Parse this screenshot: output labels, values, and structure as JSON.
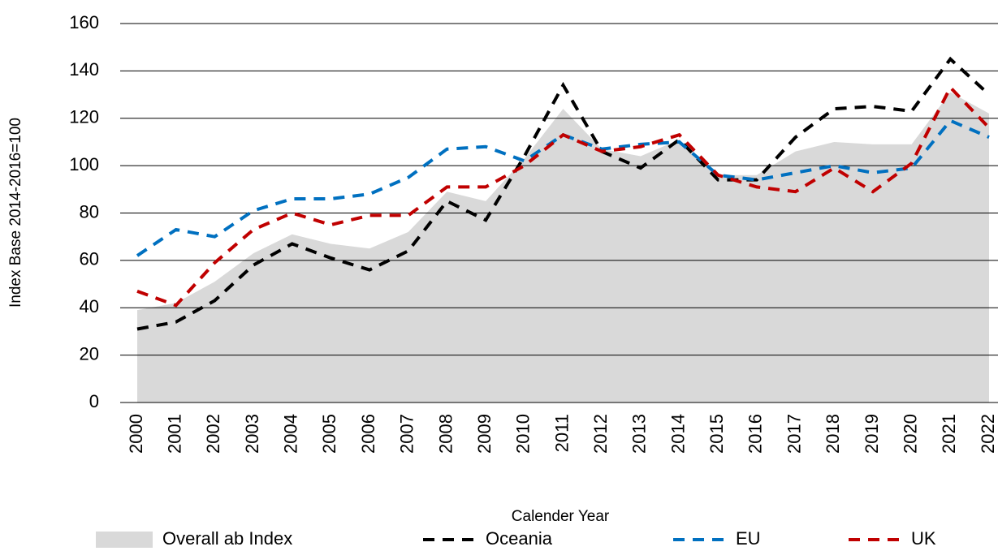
{
  "chart_data": {
    "type": "line",
    "x_label": "Calender Year",
    "y_label": "Index Base 2014-2016=100",
    "categories": [
      "2000",
      "2001",
      "2002",
      "2003",
      "2004",
      "2005",
      "2006",
      "2007",
      "2008",
      "2009",
      "2010",
      "2011",
      "2012",
      "2013",
      "2014",
      "2015",
      "2016",
      "2017",
      "2018",
      "2019",
      "2020",
      "2021",
      "2022"
    ],
    "ylim": [
      0,
      160
    ],
    "yticks": [
      0,
      20,
      40,
      60,
      80,
      100,
      120,
      140,
      160
    ],
    "grid": true,
    "legend": "bottom",
    "series": [
      {
        "name": "Overall ab Index",
        "color": "#d9d9d9",
        "kind": "area",
        "values": [
          39,
          42,
          51,
          63,
          71,
          67,
          65,
          72,
          89,
          85,
          103,
          124,
          107,
          104,
          111,
          96,
          96,
          106,
          110,
          109,
          109,
          131,
          122
        ]
      },
      {
        "name": "Oceania",
        "color": "#000000",
        "kind": "dashed",
        "values": [
          31,
          34,
          43,
          58,
          67,
          61,
          56,
          64,
          85,
          77,
          104,
          134,
          106,
          99,
          111,
          94,
          94,
          112,
          124,
          125,
          123,
          145,
          130
        ]
      },
      {
        "name": "EU",
        "color": "#0070c0",
        "kind": "dashed",
        "values": [
          62,
          73,
          70,
          81,
          86,
          86,
          88,
          95,
          107,
          108,
          102,
          113,
          107,
          109,
          110,
          96,
          94,
          97,
          100,
          97,
          99,
          119,
          112
        ]
      },
      {
        "name": "UK",
        "color": "#c00000",
        "kind": "dashed",
        "values": [
          47,
          41,
          59,
          73,
          80,
          75,
          79,
          79,
          91,
          91,
          100,
          113,
          106,
          108,
          113,
          96,
          91,
          89,
          99,
          89,
          101,
          133,
          116
        ]
      }
    ]
  }
}
